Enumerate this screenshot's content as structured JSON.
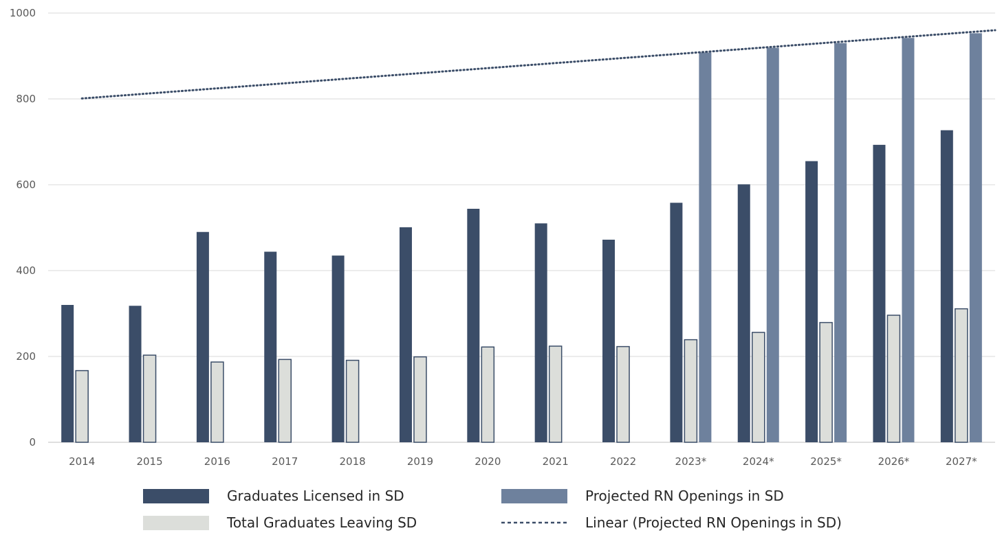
{
  "chart_data": {
    "type": "bar",
    "categories": [
      "2014",
      "2015",
      "2016",
      "2017",
      "2018",
      "2019",
      "2020",
      "2021",
      "2022",
      "2023*",
      "2024*",
      "2025*",
      "2026*",
      "2027*"
    ],
    "series": [
      {
        "name": "Graduates Licensed in SD",
        "color": "#3b4d68",
        "values": [
          320,
          318,
          490,
          444,
          435,
          501,
          544,
          510,
          472,
          558,
          601,
          655,
          693,
          727
        ]
      },
      {
        "name": "Total Graduates Leaving SD",
        "color": "#dcdeda",
        "values": [
          167,
          203,
          187,
          193,
          191,
          199,
          222,
          224,
          223,
          239,
          256,
          279,
          296,
          311
        ]
      },
      {
        "name": "Projected RN Openings in SD",
        "color": "#6e819d",
        "values": [
          null,
          null,
          null,
          null,
          null,
          null,
          null,
          null,
          null,
          908,
          919,
          930,
          942,
          953
        ]
      }
    ],
    "trendline": {
      "name": "Linear (Projected RN Openings in SD)",
      "type": "linear",
      "style": "dotted",
      "color": "#3b4d68",
      "start": {
        "x": "2014",
        "y": 801
      },
      "end_y_at_right_edge": 960
    },
    "ylim": [
      0,
      1000
    ],
    "yticks": [
      "0",
      "200",
      "400",
      "600",
      "800",
      "1000"
    ],
    "grid": true,
    "xlabel": "",
    "ylabel": "",
    "legend_position": "bottom"
  }
}
